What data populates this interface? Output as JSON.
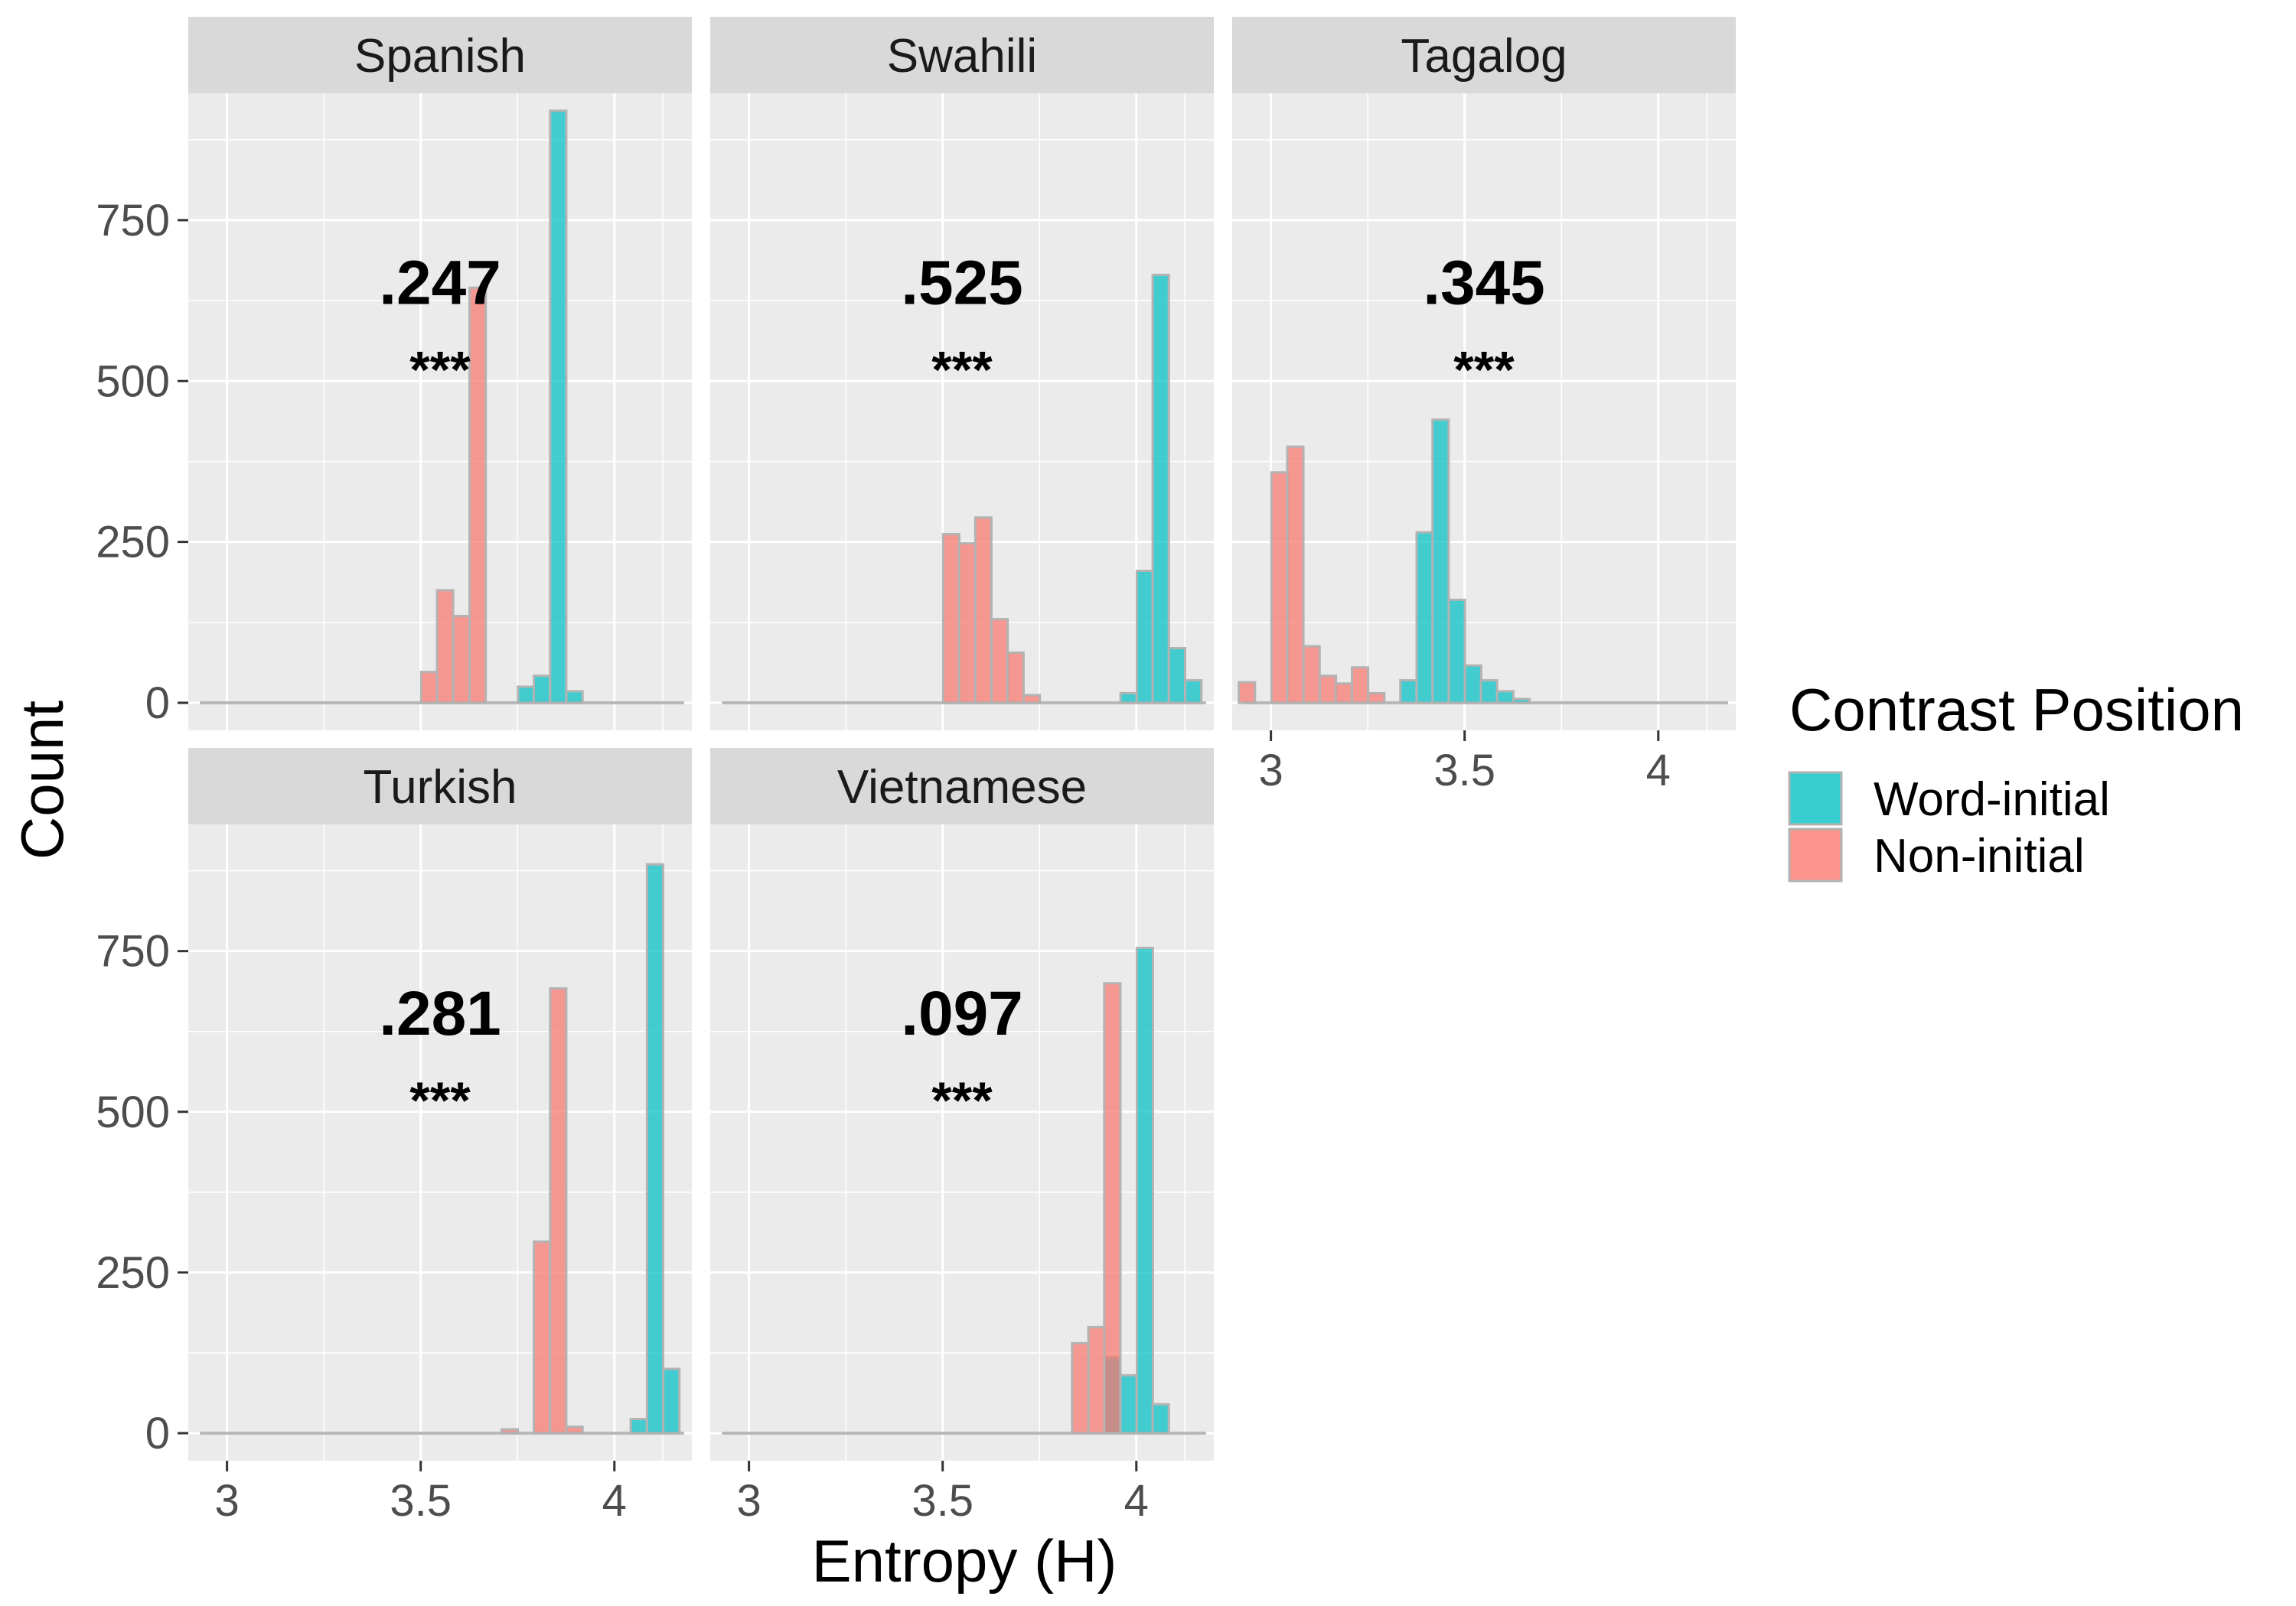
{
  "chart_data": {
    "type": "bar",
    "subtype": "faceted-histogram",
    "xlabel": "Entropy (H)",
    "ylabel": "Count",
    "xlim": [
      2.9,
      4.2
    ],
    "ylim": [
      0,
      940
    ],
    "x_ticks": [
      3,
      3.5,
      4
    ],
    "x_tick_labels": [
      "3",
      "3.5",
      "4"
    ],
    "y_ticks": [
      0,
      250,
      500,
      750
    ],
    "y_tick_labels": [
      "0",
      "250",
      "500",
      "750"
    ],
    "bin_width": 0.0417,
    "grid": true,
    "legend": {
      "title": "Contrast Position",
      "placement": "right",
      "entries": [
        {
          "name": "Word-initial",
          "color": "#00bfc4"
        },
        {
          "name": "Non-initial",
          "color": "#f8766d"
        }
      ]
    },
    "facets": [
      {
        "name": "Spanish",
        "annotation_value": ".247",
        "annotation_sig": "***",
        "series": [
          {
            "name": "Word-initial",
            "bins": [
              [
                3.772,
                25
              ],
              [
                3.813,
                42
              ],
              [
                3.855,
                920
              ],
              [
                3.897,
                18
              ]
            ]
          },
          {
            "name": "Non-initial",
            "bins": [
              [
                3.522,
                48
              ],
              [
                3.563,
                175
              ],
              [
                3.605,
                135
              ],
              [
                3.647,
                645
              ]
            ]
          }
        ]
      },
      {
        "name": "Swahili",
        "annotation_value": ".525",
        "annotation_sig": "***",
        "series": [
          {
            "name": "Word-initial",
            "bins": [
              [
                3.98,
                15
              ],
              [
                4.022,
                205
              ],
              [
                4.063,
                665
              ],
              [
                4.105,
                85
              ],
              [
                4.147,
                35
              ]
            ]
          },
          {
            "name": "Non-initial",
            "bins": [
              [
                3.522,
                262
              ],
              [
                3.563,
                248
              ],
              [
                3.605,
                288
              ],
              [
                3.647,
                130
              ],
              [
                3.688,
                78
              ],
              [
                3.73,
                12
              ]
            ]
          }
        ]
      },
      {
        "name": "Tagalog",
        "annotation_value": ".345",
        "annotation_sig": "***",
        "series": [
          {
            "name": "Word-initial",
            "bins": [
              [
                3.355,
                35
              ],
              [
                3.397,
                265
              ],
              [
                3.438,
                440
              ],
              [
                3.48,
                160
              ],
              [
                3.522,
                58
              ],
              [
                3.563,
                35
              ],
              [
                3.605,
                18
              ],
              [
                3.647,
                6
              ]
            ]
          },
          {
            "name": "Non-initial",
            "bins": [
              [
                2.938,
                32
              ],
              [
                3.022,
                358
              ],
              [
                3.063,
                398
              ],
              [
                3.105,
                88
              ],
              [
                3.147,
                42
              ],
              [
                3.188,
                30
              ],
              [
                3.23,
                55
              ],
              [
                3.272,
                15
              ]
            ]
          }
        ]
      },
      {
        "name": "Turkish",
        "annotation_value": ".281",
        "annotation_sig": "***",
        "series": [
          {
            "name": "Word-initial",
            "bins": [
              [
                4.063,
                22
              ],
              [
                4.105,
                885
              ],
              [
                4.147,
                100
              ]
            ]
          },
          {
            "name": "Non-initial",
            "bins": [
              [
                3.73,
                6
              ],
              [
                3.813,
                298
              ],
              [
                3.855,
                692
              ],
              [
                3.897,
                10
              ]
            ]
          }
        ]
      },
      {
        "name": "Vietnamese",
        "annotation_value": ".097",
        "annotation_sig": "***",
        "series": [
          {
            "name": "Word-initial",
            "bins": [
              [
                3.938,
                118
              ],
              [
                3.98,
                90
              ],
              [
                4.022,
                755
              ],
              [
                4.063,
                45
              ]
            ]
          },
          {
            "name": "Non-initial",
            "bins": [
              [
                3.855,
                140
              ],
              [
                3.897,
                165
              ],
              [
                3.938,
                700
              ]
            ]
          }
        ]
      }
    ]
  }
}
